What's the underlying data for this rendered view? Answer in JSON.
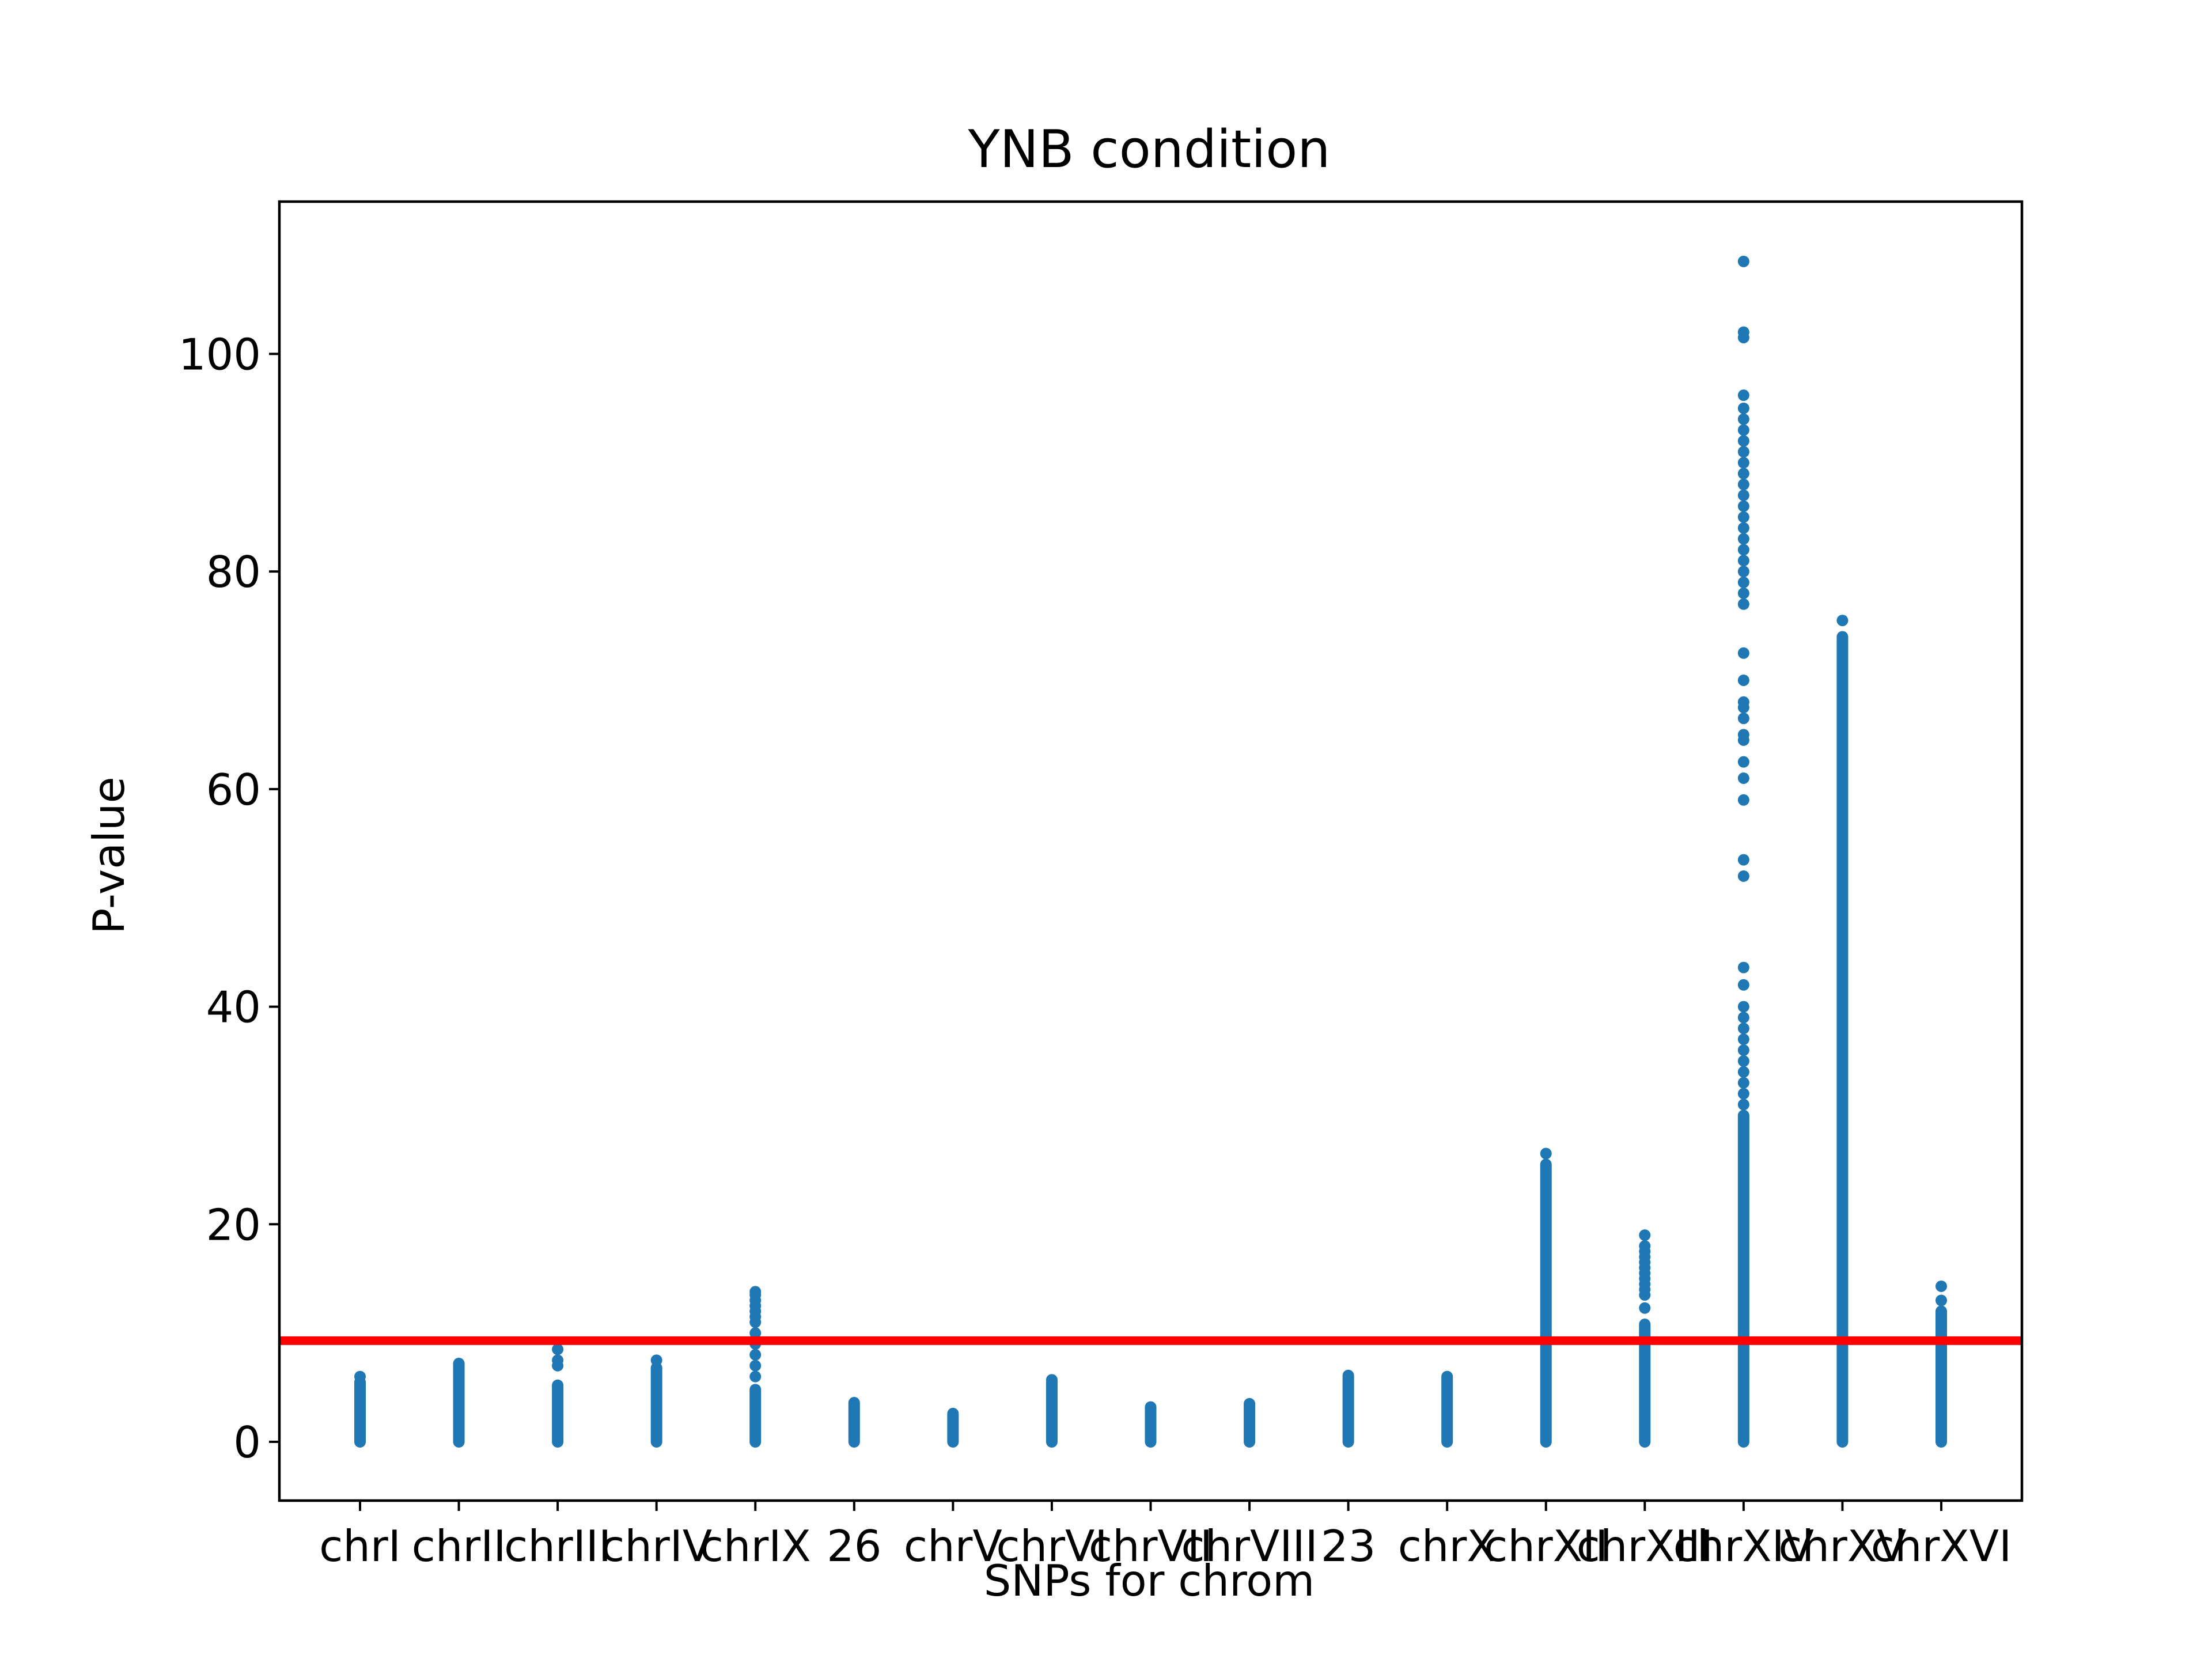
{
  "chart_data": {
    "type": "scatter",
    "title": "YNB condition",
    "xlabel": "SNPs for chrom",
    "ylabel": "P-value",
    "ylim": [
      -5.4,
      114
    ],
    "yticks": [
      0,
      20,
      40,
      60,
      80,
      100
    ],
    "grid": false,
    "categories": [
      "chrI",
      "chrII",
      "chrIII",
      "chrIV",
      "chrIX",
      "26",
      "chrV",
      "chrVI",
      "chrVII",
      "chrVIII",
      "23",
      "chrX",
      "chrXII",
      "chrXIII",
      "chrXIV",
      "chrXV",
      "chrXVI"
    ],
    "threshold": {
      "value": 9.3,
      "color": "#ff0000"
    },
    "point_color": "#1f77b4",
    "series": [
      {
        "category": "chrI",
        "min": 0,
        "max": 5.5,
        "outliers": [
          6.0
        ]
      },
      {
        "category": "chrII",
        "min": 0,
        "max": 7.2,
        "outliers": []
      },
      {
        "category": "chrIII",
        "min": 0,
        "max": 5.2,
        "outliers": [
          7.0,
          7.5,
          8.5
        ]
      },
      {
        "category": "chrIV",
        "min": 0,
        "max": 6.8,
        "outliers": [
          7.5
        ]
      },
      {
        "category": "chrIX",
        "min": 0,
        "max": 4.8,
        "outliers": [
          6.0,
          7.0,
          8.0,
          9.0,
          10.0,
          11.0,
          11.5,
          12.0,
          12.5,
          13.0,
          13.5,
          13.8
        ]
      },
      {
        "category": "26",
        "min": 0,
        "max": 3.6,
        "outliers": []
      },
      {
        "category": "chrV",
        "min": 0,
        "max": 2.6,
        "outliers": []
      },
      {
        "category": "chrVI",
        "min": 0,
        "max": 5.7,
        "outliers": []
      },
      {
        "category": "chrVII",
        "min": 0,
        "max": 3.2,
        "outliers": []
      },
      {
        "category": "chrVIII",
        "min": 0,
        "max": 3.5,
        "outliers": []
      },
      {
        "category": "23",
        "min": 0,
        "max": 6.1,
        "outliers": []
      },
      {
        "category": "chrX",
        "min": 0,
        "max": 6.0,
        "outliers": []
      },
      {
        "category": "chrXII",
        "min": 0,
        "max": 25.5,
        "outliers": [
          26.5
        ]
      },
      {
        "category": "chrXIII",
        "min": 0,
        "max": 10.8,
        "outliers": [
          12.3,
          13.5,
          14.0,
          14.5,
          15.0,
          15.5,
          16.0,
          16.5,
          17.0,
          17.5,
          18.0,
          19.0
        ]
      },
      {
        "category": "chrXIV",
        "min": 0,
        "max": 30.0,
        "outliers": [
          31,
          32,
          33,
          34,
          35,
          36,
          37,
          38,
          39,
          40,
          42,
          43.6,
          52,
          53.5,
          59,
          61,
          62.5,
          64.5,
          65,
          66.5,
          67.5,
          68,
          70,
          72.5,
          77,
          78,
          79,
          80,
          81,
          82,
          83,
          84,
          85,
          86,
          87,
          88,
          89,
          90,
          91,
          92,
          93,
          94,
          95,
          96.2,
          101.5,
          102,
          108.5
        ]
      },
      {
        "category": "chrXV",
        "min": 0,
        "max": 74.0,
        "outliers": [
          75.5
        ]
      },
      {
        "category": "chrXVI",
        "min": 0,
        "max": 12.0,
        "outliers": [
          13.0,
          14.3
        ]
      }
    ]
  }
}
